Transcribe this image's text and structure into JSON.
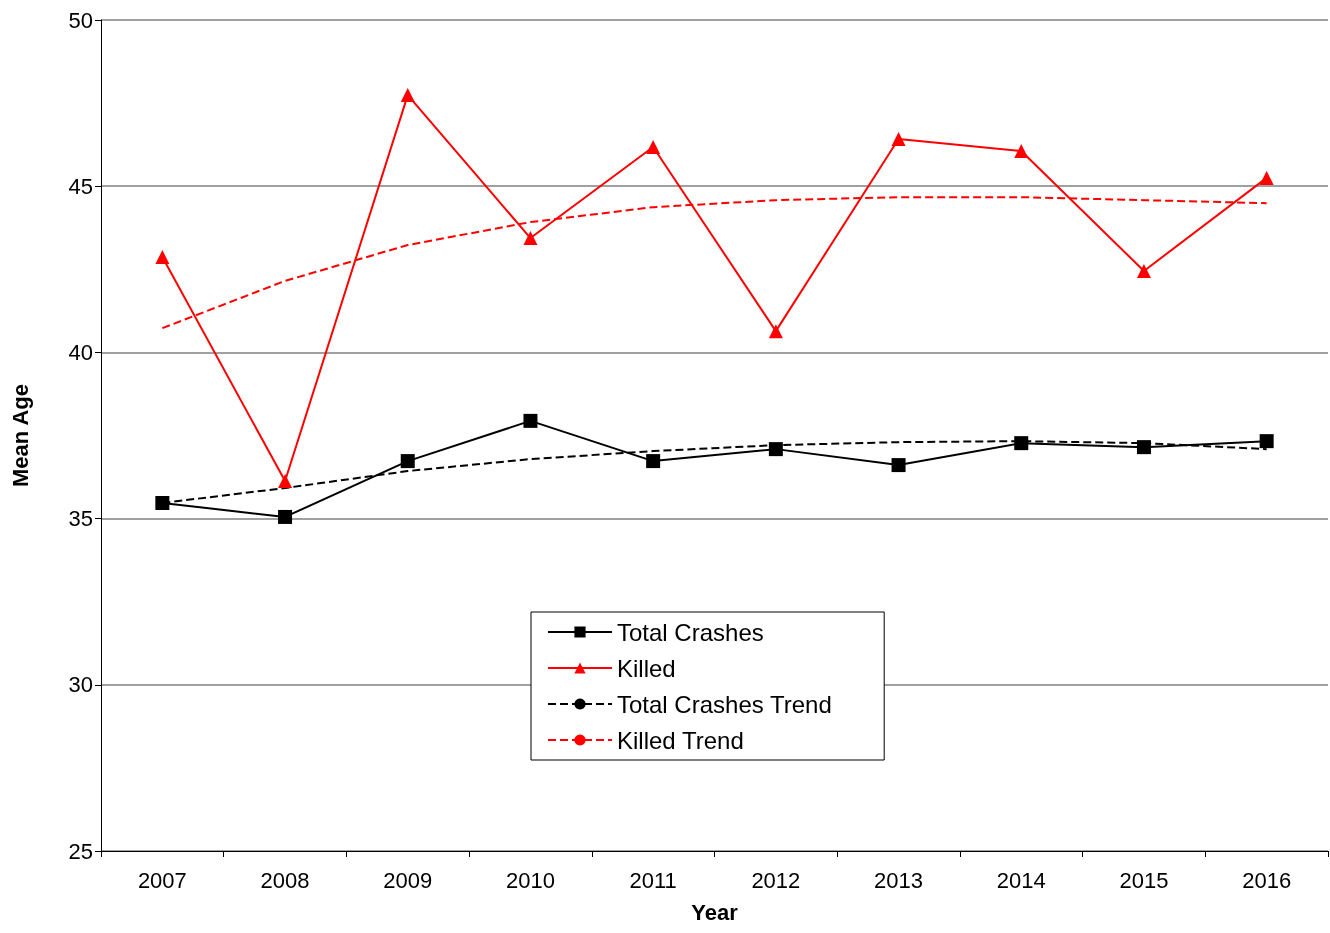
{
  "chart_data": {
    "type": "line",
    "xlabel": "Year",
    "ylabel": "Mean Age",
    "categories": [
      "2007",
      "2008",
      "2009",
      "2010",
      "2011",
      "2012",
      "2013",
      "2014",
      "2015",
      "2016"
    ],
    "series": [
      {
        "name": "Total Crashes",
        "color": "#000000",
        "marker": "square",
        "line_style": "solid",
        "values": [
          35.47,
          35.05,
          36.73,
          37.94,
          36.73,
          37.09,
          36.61,
          37.27,
          37.15,
          37.33
        ]
      },
      {
        "name": "Killed",
        "color": "#ff0000",
        "marker": "triangle",
        "line_style": "solid",
        "values": [
          42.87,
          36.13,
          47.74,
          43.44,
          46.18,
          40.64,
          46.42,
          46.06,
          42.45,
          45.25
        ]
      },
      {
        "name": "Total Crashes Trend",
        "color": "#000000",
        "marker": "none",
        "line_style": "dashed",
        "values": [
          35.47,
          35.92,
          36.43,
          36.79,
          37.03,
          37.21,
          37.3,
          37.33,
          37.27,
          37.09
        ]
      },
      {
        "name": "Killed Trend",
        "color": "#ff0000",
        "marker": "none",
        "line_style": "dashed",
        "values": [
          40.73,
          42.15,
          43.23,
          43.92,
          44.37,
          44.58,
          44.67,
          44.67,
          44.58,
          44.49
        ]
      }
    ],
    "ylim": [
      25,
      50
    ],
    "yticks": [
      25,
      30,
      35,
      40,
      45,
      50
    ],
    "grid": "y",
    "legend": "bottom"
  }
}
